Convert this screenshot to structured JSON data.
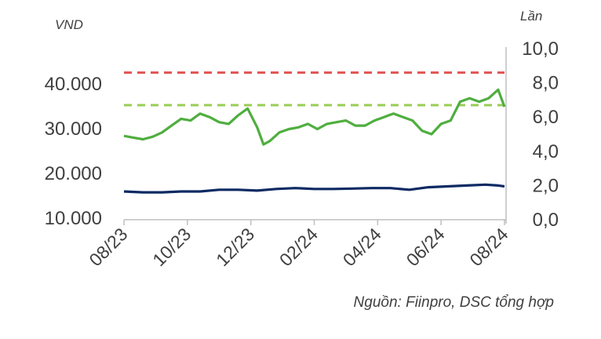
{
  "chart_data": {
    "type": "line",
    "left_axis_unit": "VND",
    "right_axis_unit": "Lần",
    "source_note": "Nguồn: Fiinpro, DSC tổng hợp",
    "x_ticks": [
      "08/23",
      "10/23",
      "12/23",
      "02/24",
      "04/24",
      "06/24",
      "08/24"
    ],
    "left_ticks": [
      "40.000",
      "30.000",
      "20.000",
      "10.000"
    ],
    "right_ticks": [
      "10,0",
      "8,0",
      "6,0",
      "4,0",
      "2,0",
      "0,0"
    ],
    "ylim_right": [
      0,
      10
    ],
    "grid": false,
    "colors": {
      "line_a": "#4fae3f",
      "line_b": "#0d2a63",
      "ref_red": "#e25757",
      "ref_green": "#99cc55",
      "axis": "#bfbfbf"
    },
    "reference_lines": [
      {
        "axis": "right",
        "value": 8.6,
        "color": "#e25757",
        "style": "dashed"
      },
      {
        "axis": "right",
        "value": 6.7,
        "color": "#99cc55",
        "style": "dashed"
      }
    ],
    "series": [
      {
        "axis": "right",
        "color": "#4fae3f",
        "x": [
          0,
          0.15,
          0.3,
          0.45,
          0.6,
          0.75,
          0.9,
          1.05,
          1.2,
          1.35,
          1.5,
          1.65,
          1.8,
          1.95,
          2.1,
          2.2,
          2.3,
          2.45,
          2.6,
          2.75,
          2.9,
          3.05,
          3.2,
          3.35,
          3.5,
          3.65,
          3.8,
          3.95,
          4.1,
          4.25,
          4.4,
          4.55,
          4.7,
          4.85,
          5.0,
          5.15,
          5.3,
          5.45,
          5.6,
          5.75,
          5.9,
          6.0
        ],
        "values": [
          4.9,
          4.8,
          4.7,
          4.85,
          5.1,
          5.5,
          5.9,
          5.8,
          6.2,
          6.0,
          5.7,
          5.6,
          6.1,
          6.5,
          5.4,
          4.4,
          4.6,
          5.1,
          5.3,
          5.4,
          5.6,
          5.3,
          5.6,
          5.7,
          5.8,
          5.5,
          5.5,
          5.8,
          6.0,
          6.2,
          6.0,
          5.8,
          5.2,
          5.0,
          5.6,
          5.8,
          6.9,
          7.1,
          6.9,
          7.1,
          7.6,
          6.6
        ]
      },
      {
        "axis": "right",
        "color": "#0d2a63",
        "x": [
          0,
          0.3,
          0.6,
          0.9,
          1.2,
          1.5,
          1.8,
          2.1,
          2.4,
          2.7,
          3.0,
          3.3,
          3.6,
          3.9,
          4.2,
          4.5,
          4.8,
          5.1,
          5.4,
          5.7,
          5.9,
          6.0
        ],
        "values": [
          1.65,
          1.6,
          1.6,
          1.65,
          1.65,
          1.75,
          1.75,
          1.7,
          1.8,
          1.85,
          1.8,
          1.8,
          1.82,
          1.85,
          1.85,
          1.75,
          1.9,
          1.95,
          2.0,
          2.05,
          2.0,
          1.95
        ]
      }
    ]
  }
}
